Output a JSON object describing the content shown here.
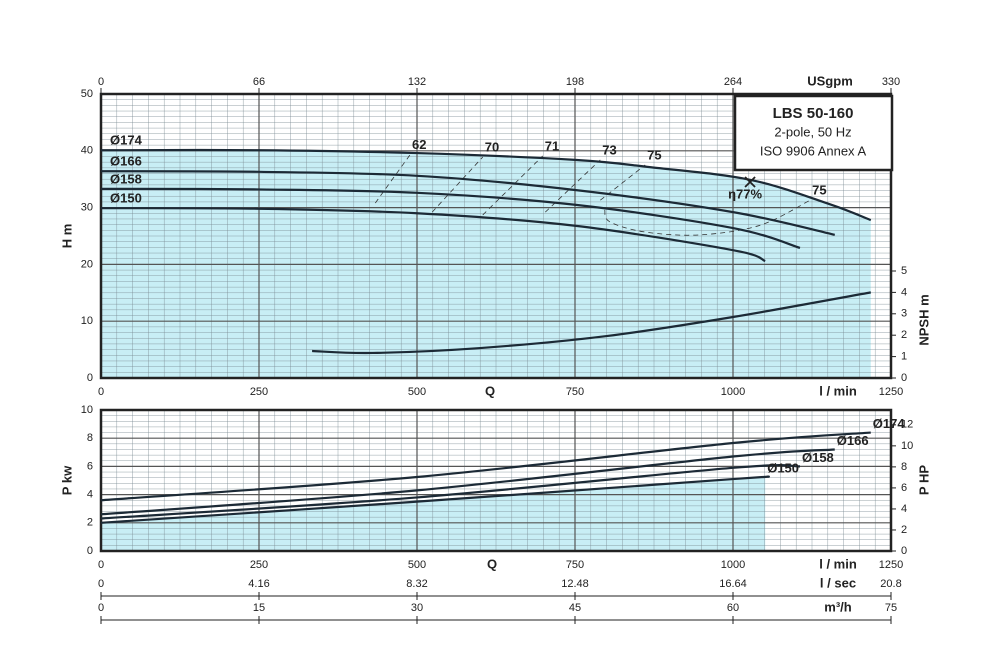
{
  "chart_data": [
    {
      "type": "line",
      "title": "LBS 50-160",
      "subtitle": "2-pole, 50 Hz",
      "note": "ISO 9906 Annex A",
      "xlabel": "Q",
      "xunit": "l / min",
      "ylabel": "H m",
      "y2label": "NPSH m",
      "xlim": [
        0,
        1250
      ],
      "xticks": [
        0,
        250,
        500,
        750,
        1000,
        1250
      ],
      "ylim": [
        0,
        50
      ],
      "yticks": [
        0,
        10,
        20,
        30,
        40,
        50
      ],
      "y2lim": [
        0,
        13.27
      ],
      "y2ticks": [
        0,
        1,
        2,
        3,
        4,
        5
      ],
      "x2label": "USgpm",
      "x2lim": [
        0,
        330
      ],
      "x2ticks": [
        0,
        66,
        132,
        198,
        264,
        330
      ],
      "fill": "#c8eef5",
      "grid": true,
      "series": [
        {
          "name": "Ø174",
          "color": "#1c2a36",
          "x": [
            0,
            250,
            500,
            750,
            870,
            1027,
            1153,
            1218
          ],
          "values": [
            40.1,
            40.1,
            39.6,
            38.4,
            37.1,
            34.9,
            30.6,
            27.8
          ]
        },
        {
          "name": "Ø166",
          "color": "#1c2a36",
          "x": [
            0,
            250,
            500,
            750,
            1000,
            1161
          ],
          "values": [
            36.4,
            36.3,
            35.6,
            33.1,
            29.2,
            25.2
          ]
        },
        {
          "name": "Ø158",
          "color": "#1c2a36",
          "x": [
            0,
            250,
            500,
            750,
            1000,
            1106
          ],
          "values": [
            33.3,
            33.2,
            32.6,
            30.5,
            26.4,
            22.9
          ]
        },
        {
          "name": "Ø150",
          "color": "#1c2a36",
          "x": [
            0,
            250,
            500,
            750,
            1000,
            1051
          ],
          "values": [
            29.9,
            29.8,
            29.0,
            26.8,
            22.5,
            20.6
          ]
        },
        {
          "name": "NPSH",
          "axis": "y2",
          "color": "#1c2a36",
          "x": [
            334,
            430,
            600,
            800,
            1000,
            1218
          ],
          "values": [
            1.26,
            1.17,
            1.4,
            1.96,
            2.85,
            4.0
          ]
        }
      ],
      "efficiency_lines": [
        {
          "name": "62",
          "x": [
            434,
            489
          ],
          "values": [
            30.8,
            39.3
          ]
        },
        {
          "name": "70",
          "x": [
            524,
            604
          ],
          "values": [
            29.2,
            38.9
          ]
        },
        {
          "name": "71",
          "x": [
            604,
            699
          ],
          "values": [
            28.7,
            39.1
          ]
        },
        {
          "name": "73",
          "x": [
            703,
            790
          ],
          "values": [
            29.2,
            38.4
          ]
        },
        {
          "name": "75",
          "x": [
            790,
            861
          ],
          "values": [
            31.3,
            37.5
          ]
        },
        {
          "name": "75",
          "x": [
            797,
            805,
            861,
            948,
            1043,
            1122
          ],
          "values": [
            29.6,
            27.5,
            25.7,
            25.2,
            26.9,
            31.3
          ]
        }
      ],
      "bep": {
        "x": 1027,
        "value": 34.5,
        "label": "η77%"
      }
    },
    {
      "type": "line",
      "xlabel": "Q",
      "xunit": "l / min",
      "ylabel": "P kw",
      "y2label": "P HP",
      "xlim": [
        0,
        1250
      ],
      "xticks": [
        0,
        250,
        500,
        750,
        1000,
        1250
      ],
      "ylim": [
        0,
        10
      ],
      "yticks": [
        0,
        2,
        4,
        6,
        8,
        10
      ],
      "y2lim": [
        0,
        13.41
      ],
      "y2ticks": [
        0,
        2,
        4,
        6,
        8,
        10,
        12
      ],
      "fill": "#c8eef5",
      "grid": true,
      "series": [
        {
          "name": "Ø174",
          "color": "#1c2a36",
          "x": [
            0,
            500,
            1000,
            1218
          ],
          "values": [
            3.6,
            5.25,
            7.66,
            8.4
          ]
        },
        {
          "name": "Ø166",
          "color": "#1c2a36",
          "x": [
            0,
            500,
            1000,
            1161
          ],
          "values": [
            2.6,
            4.3,
            6.7,
            7.2
          ]
        },
        {
          "name": "Ø158",
          "color": "#1c2a36",
          "x": [
            0,
            500,
            1000,
            1106
          ],
          "values": [
            2.3,
            3.8,
            5.9,
            6.0
          ]
        },
        {
          "name": "Ø150",
          "color": "#1c2a36",
          "x": [
            0,
            500,
            1000,
            1051
          ],
          "values": [
            2.0,
            3.5,
            5.1,
            5.25
          ]
        }
      ],
      "extra_axes": [
        {
          "label": "l / sec",
          "lim": [
            0,
            20.8
          ],
          "ticks": [
            0,
            4.16,
            8.32,
            12.48,
            16.64,
            20.8
          ]
        },
        {
          "label": "m³/h",
          "lim": [
            0,
            75
          ],
          "ticks": [
            0,
            15,
            30,
            45,
            60,
            75
          ]
        }
      ]
    }
  ]
}
